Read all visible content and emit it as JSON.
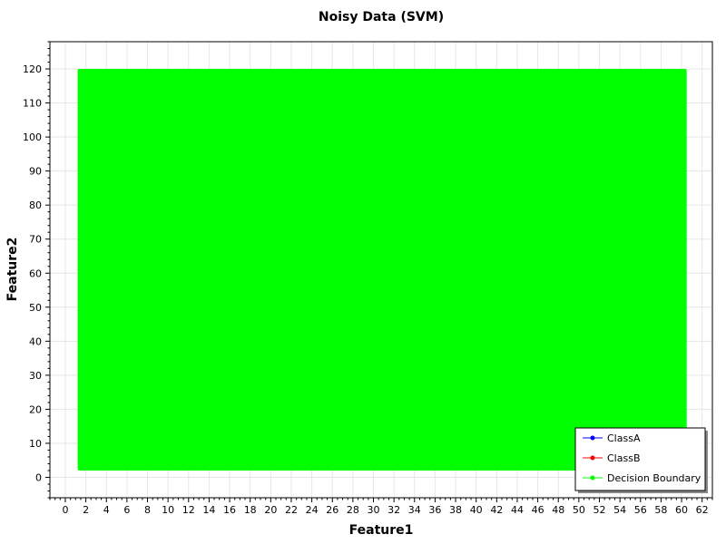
{
  "chart_data": {
    "type": "scatter",
    "title": "Noisy Data (SVM)",
    "xlabel": "Feature1",
    "ylabel": "Feature2",
    "xlim": [
      -1.5,
      63
    ],
    "ylim": [
      -6,
      128
    ],
    "x_ticks": [
      0,
      2,
      4,
      6,
      8,
      10,
      12,
      14,
      16,
      18,
      20,
      22,
      24,
      26,
      28,
      30,
      32,
      34,
      36,
      38,
      40,
      42,
      44,
      46,
      48,
      50,
      52,
      54,
      56,
      58,
      60,
      62
    ],
    "y_ticks": [
      0,
      10,
      20,
      30,
      40,
      50,
      60,
      70,
      80,
      90,
      100,
      110,
      120
    ],
    "grid": true,
    "legend_position": "bottom-right",
    "series": [
      {
        "name": "ClassA",
        "color": "#0000ff",
        "points": []
      },
      {
        "name": "ClassB",
        "color": "#ff0000",
        "points": []
      },
      {
        "name": "Decision Boundary",
        "color": "#00ff00",
        "filled_region": {
          "x": [
            1.2,
            60.5
          ],
          "y": [
            2,
            120
          ]
        }
      }
    ]
  }
}
